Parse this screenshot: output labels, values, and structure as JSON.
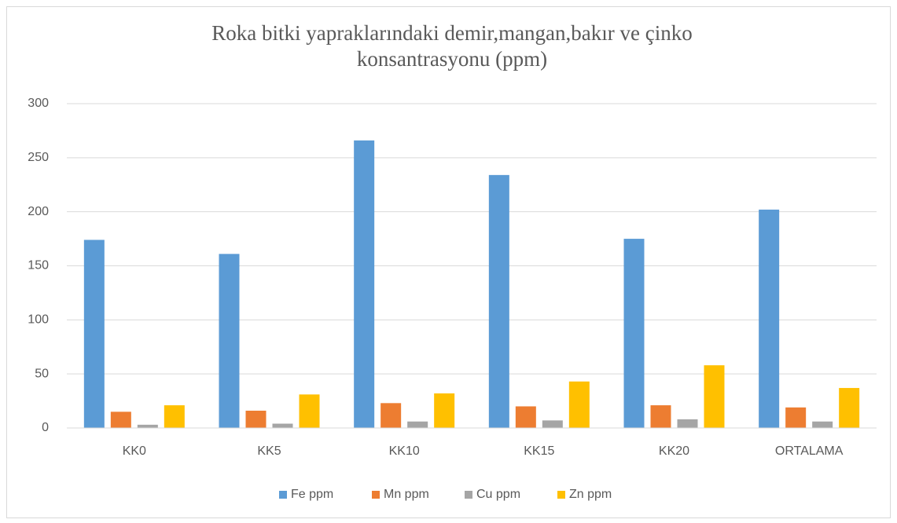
{
  "chart_data": {
    "type": "bar",
    "title_lines": [
      "Roka bitki yapraklarındaki demir,mangan,bakır ve çinko",
      "konsantrasyonu (ppm)"
    ],
    "categories": [
      "KK0",
      "KK5",
      "KK10",
      "KK15",
      "KK20",
      "ORTALAMA"
    ],
    "series": [
      {
        "name": "Fe ppm",
        "color": "#5b9bd5",
        "values": [
          174,
          161,
          266,
          234,
          175,
          202
        ]
      },
      {
        "name": "Mn ppm",
        "color": "#ed7d31",
        "values": [
          15,
          16,
          23,
          20,
          21,
          19
        ]
      },
      {
        "name": "Cu ppm",
        "color": "#a5a5a5",
        "values": [
          3,
          4,
          6,
          7,
          8,
          6
        ]
      },
      {
        "name": "Zn ppm",
        "color": "#ffc000",
        "values": [
          21,
          31,
          32,
          43,
          58,
          37
        ]
      }
    ],
    "ylim": [
      0,
      300
    ],
    "yticks": [
      0,
      50,
      100,
      150,
      200,
      250,
      300
    ],
    "grid": true,
    "legend": "bottom"
  }
}
